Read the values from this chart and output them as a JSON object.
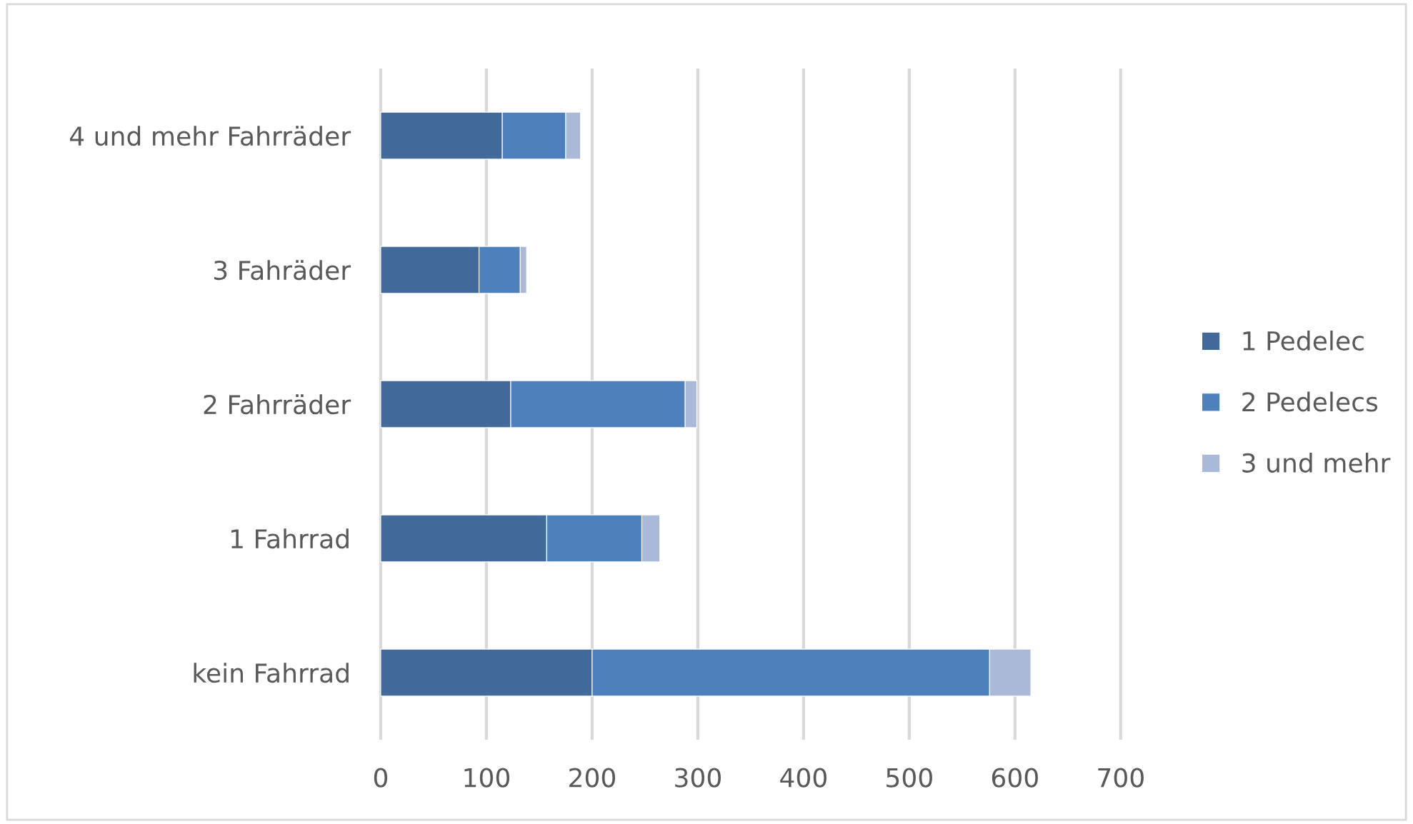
{
  "chart_data": {
    "type": "bar",
    "orientation": "horizontal",
    "stacked": true,
    "categories": [
      "4 und mehr Fahrräder",
      "3 Fahräder",
      "2 Fahrräder",
      "1 Fahrrad",
      "kein Fahrrad"
    ],
    "series": [
      {
        "name": "1 Pedelec",
        "color": "#41699a",
        "values": [
          115,
          93,
          123,
          157,
          200
        ]
      },
      {
        "name": "2 Pedelecs",
        "color": "#4e80bb",
        "values": [
          60,
          39,
          165,
          90,
          376
        ]
      },
      {
        "name": "3 und mehr",
        "color": "#a9b9d7",
        "values": [
          14,
          6,
          11,
          17,
          39
        ]
      }
    ],
    "xlim": [
      0,
      700
    ],
    "xticks": [
      0,
      100,
      200,
      300,
      400,
      500,
      600,
      700
    ],
    "grid": "x",
    "legend": "right"
  }
}
